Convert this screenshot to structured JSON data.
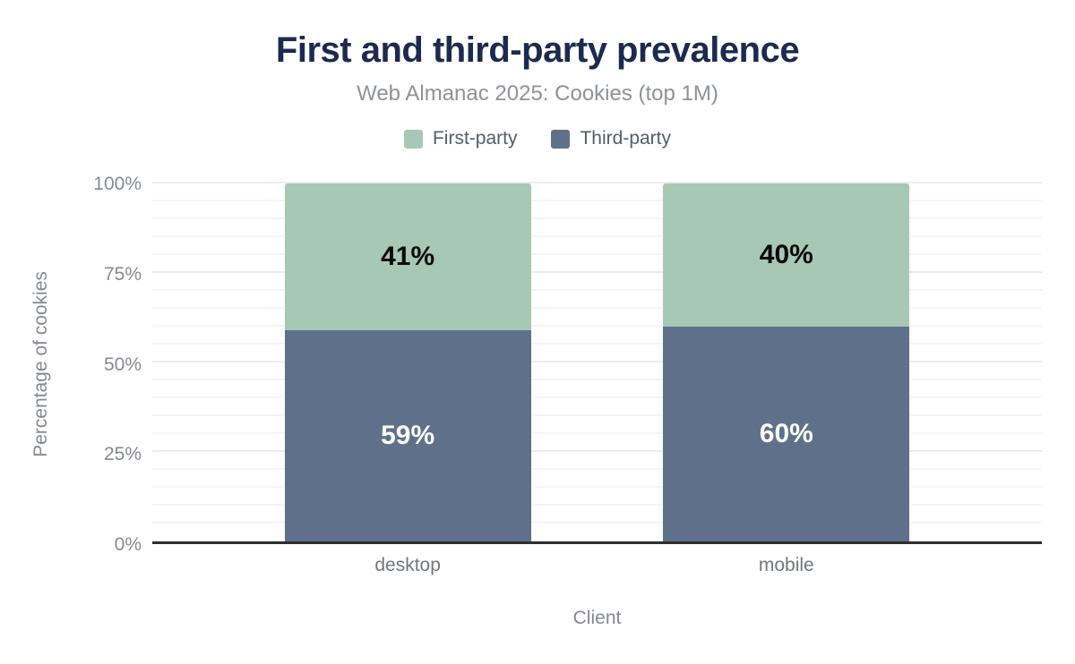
{
  "chart_data": {
    "type": "bar",
    "stacked": true,
    "title": "First and third-party prevalence",
    "subtitle": "Web Almanac 2025: Cookies (top 1M)",
    "xlabel": "Client",
    "ylabel": "Percentage of cookies",
    "categories": [
      "desktop",
      "mobile"
    ],
    "series": [
      {
        "name": "First-party",
        "color": "#a6c8b5",
        "values": [
          41,
          40
        ],
        "data_label_color": "#0a0a0a"
      },
      {
        "name": "Third-party",
        "color": "#5f718a",
        "values": [
          59,
          60
        ],
        "data_label_color": "#ffffff"
      }
    ],
    "stack_order_bottom_to_top": [
      1,
      0
    ],
    "data_label_format": "{value}%",
    "ylim": [
      0,
      100
    ],
    "ytick_values": [
      0,
      25,
      50,
      75,
      100
    ],
    "ytick_labels": [
      "0%",
      "25%",
      "50%",
      "75%",
      "100%"
    ],
    "grid": {
      "minor_step": 5,
      "major_step": 25,
      "minor_color": "#f5f5f5",
      "major_color": "#ececec"
    },
    "legend_position": "top",
    "axis_line_color": "#2e2e2e",
    "title_color": "#1c2a4e",
    "subtitle_color": "#8e9297"
  }
}
